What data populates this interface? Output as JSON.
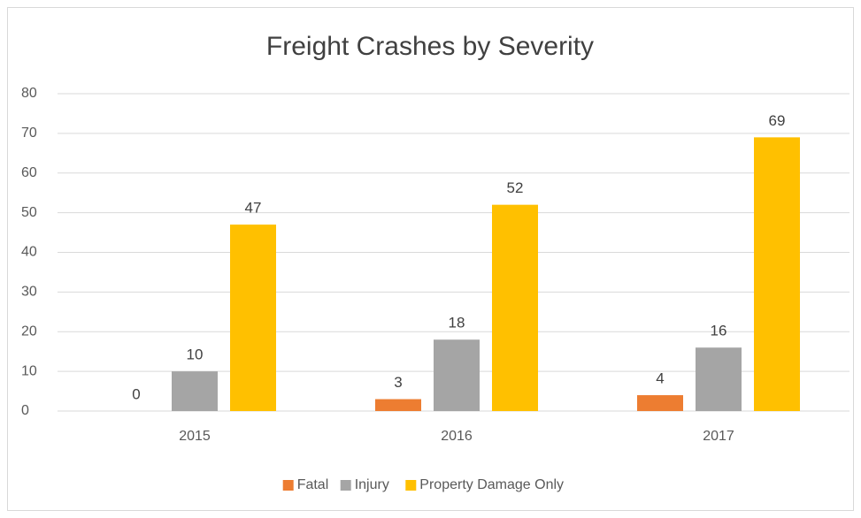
{
  "chart_data": {
    "type": "bar",
    "title": "Freight Crashes by Severity",
    "categories": [
      "2015",
      "2016",
      "2017"
    ],
    "series": [
      {
        "name": "Fatal",
        "color": "#ed7d31",
        "values": [
          0,
          3,
          4
        ]
      },
      {
        "name": "Injury",
        "color": "#a5a5a5",
        "values": [
          10,
          18,
          16
        ]
      },
      {
        "name": "Property Damage Only",
        "color": "#ffc000",
        "values": [
          47,
          52,
          69
        ]
      }
    ],
    "ylim": [
      0,
      80
    ],
    "yticks": [
      0,
      10,
      20,
      30,
      40,
      50,
      60,
      70,
      80
    ],
    "grid": true,
    "legend": "bottom"
  }
}
